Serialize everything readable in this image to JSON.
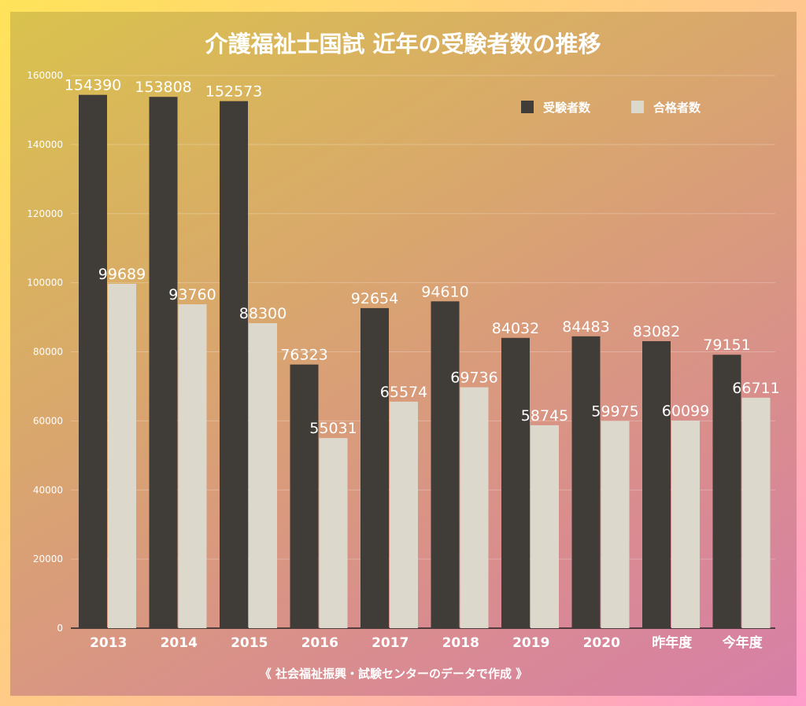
{
  "chart_data": {
    "type": "bar",
    "title": "介護福祉士国試 近年の受験者数の推移",
    "categories": [
      "2013",
      "2014",
      "2015",
      "2016",
      "2017",
      "2018",
      "2019",
      "2020",
      "昨年度",
      "今年度"
    ],
    "series": [
      {
        "name": "受験者数",
        "color": "#403d39",
        "values": [
          154390,
          153808,
          152573,
          76323,
          92654,
          94610,
          84032,
          84483,
          83082,
          79151
        ]
      },
      {
        "name": "合格者数",
        "color": "#dcd8cc",
        "values": [
          99689,
          93760,
          88300,
          55031,
          65574,
          69736,
          58745,
          59975,
          60099,
          66711
        ]
      }
    ],
    "ylim": [
      0,
      160000
    ],
    "yticks": [
      "0",
      "20000",
      "40000",
      "60000",
      "80000",
      "100000",
      "120000",
      "140000",
      "160000"
    ],
    "grid": true,
    "legend": "top-right",
    "source": "《 社会福祉振興・試験センターのデータで作成 》"
  }
}
